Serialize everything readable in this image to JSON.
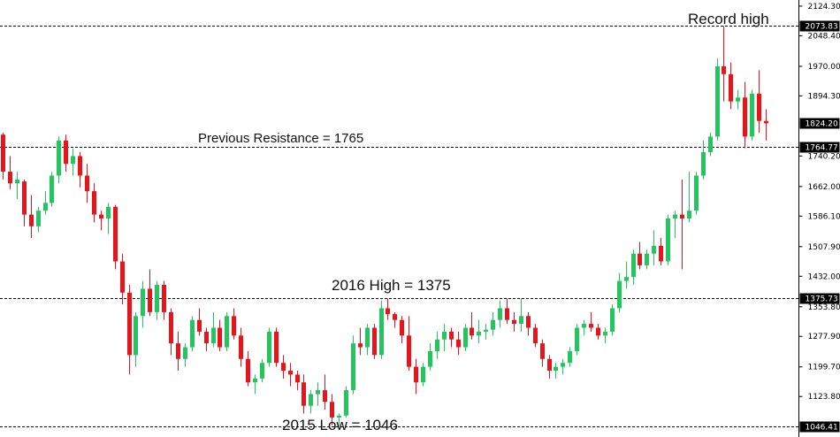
{
  "chart_data": {
    "type": "candlestick",
    "ylim": [
      1020,
      2140
    ],
    "y_ticks": [
      2124.3,
      2048.4,
      1970.0,
      1894.3,
      1740.2,
      1662.0,
      1586.1,
      1507.9,
      1432.0,
      1353.8,
      1277.9,
      1199.7,
      1123.8
    ],
    "y_tick_labels": [
      "2124.30",
      "2048.40",
      "1970.00",
      "1894.30",
      "1740.20",
      "1662.00",
      "1586.10",
      "1507.90",
      "1432.00",
      "1353.80",
      "1277.90",
      "1199.70",
      "1123.80"
    ],
    "current_price": {
      "value": 1824.2,
      "label": "1824.20"
    },
    "levels": [
      {
        "value": 2073.83,
        "label": "2073.83",
        "annotation": "Record high"
      },
      {
        "value": 1764.77,
        "label": "1764.77",
        "annotation": "Previous Resistance = 1765"
      },
      {
        "value": 1375.73,
        "label": "1375.73",
        "annotation": "2016 High = 1375"
      },
      {
        "value": 1046.41,
        "label": "1046.41",
        "annotation": "2015 Low = 1046"
      }
    ],
    "candles": [
      [
        1795,
        1800,
        1680,
        1700
      ],
      [
        1700,
        1740,
        1655,
        1670
      ],
      [
        1670,
        1700,
        1630,
        1680
      ],
      [
        1675,
        1680,
        1560,
        1590
      ],
      [
        1590,
        1640,
        1530,
        1560
      ],
      [
        1560,
        1610,
        1545,
        1600
      ],
      [
        1600,
        1650,
        1590,
        1620
      ],
      [
        1620,
        1700,
        1610,
        1690
      ],
      [
        1690,
        1790,
        1670,
        1780
      ],
      [
        1780,
        1795,
        1700,
        1720
      ],
      [
        1720,
        1760,
        1690,
        1740
      ],
      [
        1740,
        1750,
        1660,
        1690
      ],
      [
        1690,
        1720,
        1620,
        1650
      ],
      [
        1650,
        1670,
        1570,
        1590
      ],
      [
        1590,
        1600,
        1550,
        1580
      ],
      [
        1580,
        1620,
        1540,
        1610
      ],
      [
        1610,
        1615,
        1450,
        1470
      ],
      [
        1470,
        1490,
        1360,
        1390
      ],
      [
        1390,
        1410,
        1180,
        1230
      ],
      [
        1230,
        1340,
        1200,
        1330
      ],
      [
        1330,
        1420,
        1300,
        1400
      ],
      [
        1400,
        1450,
        1330,
        1340
      ],
      [
        1340,
        1420,
        1320,
        1410
      ],
      [
        1410,
        1420,
        1320,
        1340
      ],
      [
        1340,
        1350,
        1230,
        1260
      ],
      [
        1260,
        1290,
        1190,
        1220
      ],
      [
        1220,
        1260,
        1200,
        1250
      ],
      [
        1250,
        1330,
        1240,
        1320
      ],
      [
        1320,
        1350,
        1280,
        1290
      ],
      [
        1290,
        1300,
        1240,
        1260
      ],
      [
        1260,
        1340,
        1250,
        1300
      ],
      [
        1300,
        1320,
        1240,
        1250
      ],
      [
        1250,
        1340,
        1240,
        1330
      ],
      [
        1330,
        1350,
        1270,
        1280
      ],
      [
        1280,
        1300,
        1200,
        1220
      ],
      [
        1220,
        1240,
        1150,
        1160
      ],
      [
        1160,
        1180,
        1130,
        1170
      ],
      [
        1170,
        1220,
        1160,
        1210
      ],
      [
        1210,
        1300,
        1200,
        1290
      ],
      [
        1290,
        1300,
        1200,
        1210
      ],
      [
        1210,
        1230,
        1170,
        1190
      ],
      [
        1190,
        1210,
        1150,
        1180
      ],
      [
        1180,
        1190,
        1140,
        1160
      ],
      [
        1160,
        1180,
        1080,
        1100
      ],
      [
        1100,
        1140,
        1080,
        1130
      ],
      [
        1130,
        1160,
        1100,
        1140
      ],
      [
        1140,
        1180,
        1090,
        1110
      ],
      [
        1110,
        1130,
        1050,
        1070
      ],
      [
        1070,
        1080,
        1046,
        1075
      ],
      [
        1075,
        1150,
        1070,
        1140
      ],
      [
        1140,
        1280,
        1130,
        1260
      ],
      [
        1260,
        1300,
        1230,
        1250
      ],
      [
        1250,
        1310,
        1230,
        1300
      ],
      [
        1300,
        1310,
        1220,
        1230
      ],
      [
        1230,
        1370,
        1220,
        1350
      ],
      [
        1350,
        1375,
        1320,
        1335
      ],
      [
        1335,
        1340,
        1300,
        1320
      ],
      [
        1320,
        1330,
        1260,
        1280
      ],
      [
        1280,
        1330,
        1190,
        1200
      ],
      [
        1200,
        1220,
        1130,
        1160
      ],
      [
        1160,
        1210,
        1150,
        1200
      ],
      [
        1200,
        1260,
        1190,
        1240
      ],
      [
        1240,
        1290,
        1220,
        1270
      ],
      [
        1270,
        1310,
        1240,
        1290
      ],
      [
        1290,
        1300,
        1250,
        1270
      ],
      [
        1270,
        1290,
        1230,
        1250
      ],
      [
        1250,
        1310,
        1240,
        1300
      ],
      [
        1300,
        1340,
        1270,
        1280
      ],
      [
        1280,
        1320,
        1260,
        1290
      ],
      [
        1290,
        1310,
        1270,
        1295
      ],
      [
        1295,
        1340,
        1280,
        1320
      ],
      [
        1320,
        1370,
        1300,
        1350
      ],
      [
        1350,
        1375,
        1310,
        1320
      ],
      [
        1320,
        1340,
        1290,
        1310
      ],
      [
        1310,
        1375,
        1290,
        1330
      ],
      [
        1330,
        1340,
        1280,
        1300
      ],
      [
        1300,
        1310,
        1250,
        1260
      ],
      [
        1260,
        1270,
        1200,
        1220
      ],
      [
        1220,
        1230,
        1170,
        1190
      ],
      [
        1190,
        1210,
        1170,
        1200
      ],
      [
        1200,
        1220,
        1180,
        1210
      ],
      [
        1210,
        1250,
        1200,
        1240
      ],
      [
        1240,
        1310,
        1230,
        1300
      ],
      [
        1300,
        1320,
        1280,
        1310
      ],
      [
        1310,
        1340,
        1290,
        1300
      ],
      [
        1300,
        1310,
        1270,
        1280
      ],
      [
        1280,
        1300,
        1260,
        1290
      ],
      [
        1290,
        1360,
        1280,
        1350
      ],
      [
        1350,
        1440,
        1340,
        1420
      ],
      [
        1420,
        1470,
        1400,
        1430
      ],
      [
        1430,
        1500,
        1410,
        1490
      ],
      [
        1490,
        1520,
        1450,
        1460
      ],
      [
        1460,
        1500,
        1450,
        1490
      ],
      [
        1490,
        1550,
        1460,
        1510
      ],
      [
        1510,
        1530,
        1460,
        1470
      ],
      [
        1470,
        1590,
        1460,
        1580
      ],
      [
        1580,
        1600,
        1530,
        1590
      ],
      [
        1590,
        1680,
        1450,
        1580
      ],
      [
        1580,
        1700,
        1570,
        1600
      ],
      [
        1600,
        1700,
        1590,
        1690
      ],
      [
        1690,
        1780,
        1680,
        1750
      ],
      [
        1750,
        1800,
        1740,
        1790
      ],
      [
        1790,
        1990,
        1780,
        1970
      ],
      [
        1970,
        2073,
        1880,
        1950
      ],
      [
        1950,
        1980,
        1860,
        1880
      ],
      [
        1880,
        1910,
        1860,
        1890
      ],
      [
        1890,
        1930,
        1760,
        1790
      ],
      [
        1790,
        1910,
        1780,
        1900
      ],
      [
        1900,
        1960,
        1800,
        1830
      ],
      [
        1830,
        1860,
        1780,
        1824
      ]
    ]
  }
}
